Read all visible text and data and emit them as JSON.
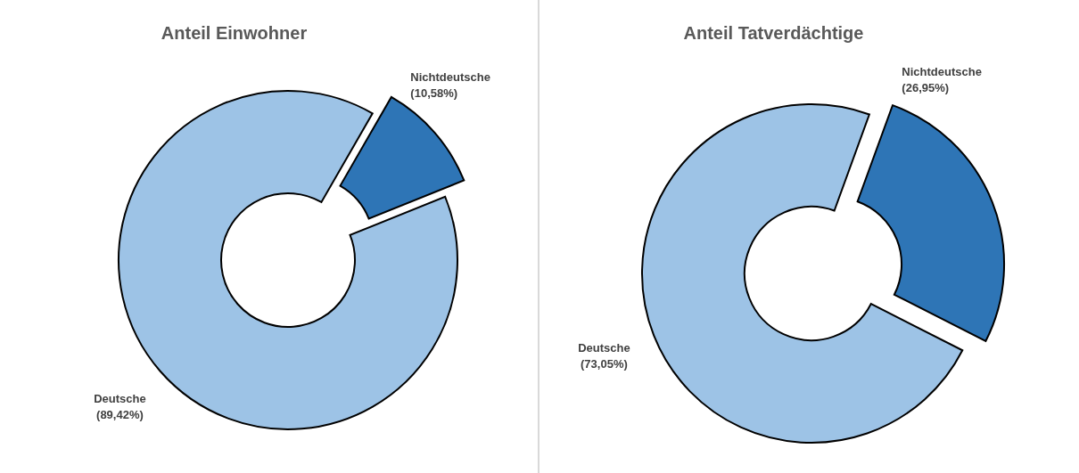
{
  "chart_data": [
    {
      "type": "donut",
      "title": "Anteil Einwohner",
      "categories": [
        "Deutsche",
        "Nichtdeutsche"
      ],
      "values": [
        89.42,
        10.58
      ],
      "colors": [
        "#9dc3e6",
        "#2e75b6"
      ],
      "value_labels": [
        "(89,42%)",
        "(10,58%)"
      ]
    },
    {
      "type": "donut",
      "title": "Anteil Tatverdächtige",
      "categories": [
        "Deutsche",
        "Nichtdeutsche"
      ],
      "values": [
        73.05,
        26.95
      ],
      "colors": [
        "#9dc3e6",
        "#2e75b6"
      ],
      "value_labels": [
        "(73,05%)",
        "(26,95%)"
      ]
    }
  ]
}
